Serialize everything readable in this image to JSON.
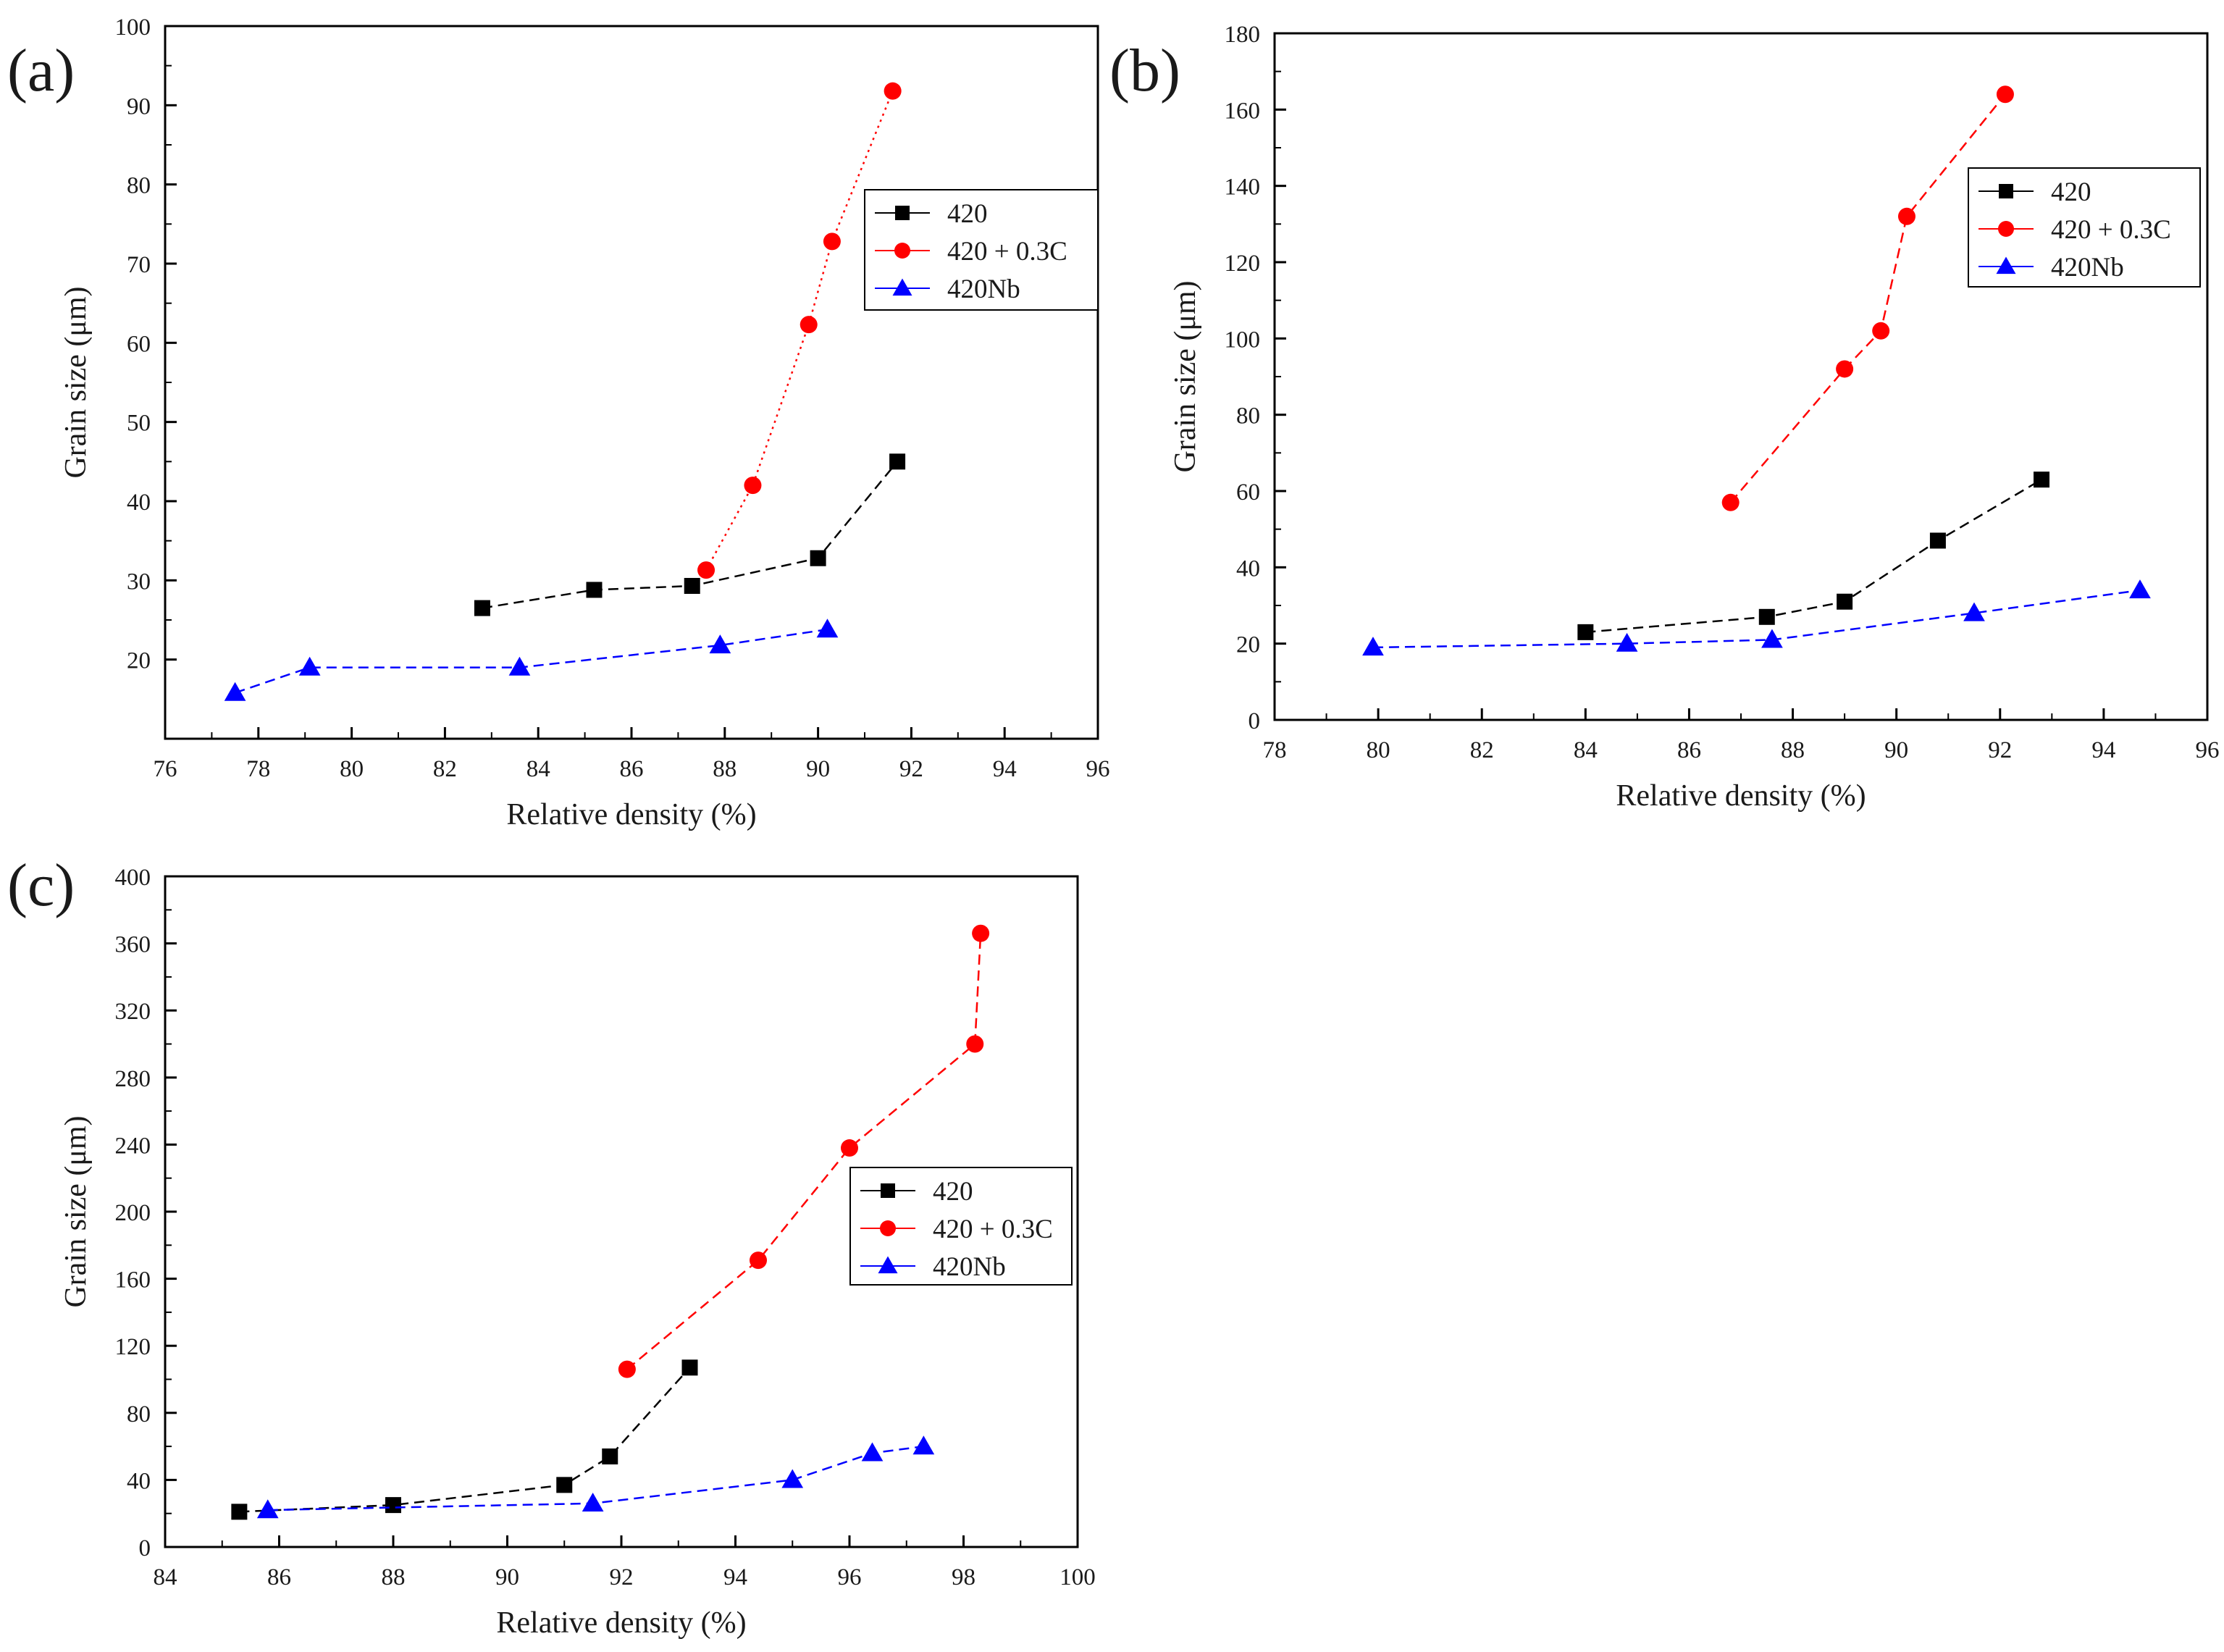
{
  "figure": {
    "panels": [
      "a",
      "b",
      "c"
    ]
  },
  "chart_data": [
    {
      "panel_label": "(a)",
      "type": "line",
      "title": "",
      "xlabel": "Relative density (%)",
      "ylabel": "Grain size (μm)",
      "xlim": [
        76,
        96
      ],
      "ylim": [
        10,
        100
      ],
      "xticks": [
        76,
        78,
        80,
        82,
        84,
        86,
        88,
        90,
        92,
        94,
        96
      ],
      "yticks": [
        20,
        30,
        40,
        50,
        60,
        70,
        80,
        90,
        100
      ],
      "grid": false,
      "legend_position": "top-right",
      "series": [
        {
          "name": "420",
          "marker": "square",
          "color": "#000000",
          "line": "dash",
          "x": [
            82.8,
            85.2,
            87.3,
            90.0,
            91.7
          ],
          "y": [
            26.5,
            28.8,
            29.3,
            32.8,
            45.0
          ]
        },
        {
          "name": "420 + 0.3C",
          "marker": "circle",
          "color": "#ff0000",
          "line": "dot",
          "x": [
            87.6,
            88.6,
            89.8,
            90.3,
            91.6
          ],
          "y": [
            31.3,
            42.0,
            62.3,
            72.8,
            91.8
          ]
        },
        {
          "name": "420Nb",
          "marker": "triangle",
          "color": "#0000ff",
          "line": "dash",
          "x": [
            77.5,
            79.1,
            83.6,
            87.9,
            90.2
          ],
          "y": [
            15.8,
            19.0,
            19.0,
            21.8,
            23.8
          ]
        }
      ]
    },
    {
      "panel_label": "(b)",
      "type": "line",
      "title": "",
      "xlabel": "Relative density (%)",
      "ylabel": "Grain size (μm)",
      "xlim": [
        78,
        96
      ],
      "ylim": [
        0,
        180
      ],
      "xticks": [
        78,
        80,
        82,
        84,
        86,
        88,
        90,
        92,
        94,
        96
      ],
      "yticks": [
        0,
        20,
        40,
        60,
        80,
        100,
        120,
        140,
        160,
        180
      ],
      "grid": false,
      "legend_position": "top-right",
      "series": [
        {
          "name": "420",
          "marker": "square",
          "color": "#000000",
          "line": "dash",
          "x": [
            84.0,
            87.5,
            89.0,
            90.8,
            92.8
          ],
          "y": [
            23.0,
            27.0,
            31.0,
            47.0,
            63.0
          ]
        },
        {
          "name": "420 + 0.3C",
          "marker": "circle",
          "color": "#ff0000",
          "line": "dash",
          "x": [
            86.8,
            89.0,
            89.7,
            90.2,
            92.1
          ],
          "y": [
            57.0,
            92.0,
            102.0,
            132.0,
            164.0
          ]
        },
        {
          "name": "420Nb",
          "marker": "triangle",
          "color": "#0000ff",
          "line": "dash",
          "x": [
            79.9,
            84.8,
            87.6,
            91.5,
            94.7
          ],
          "y": [
            19.0,
            20.0,
            21.0,
            28.0,
            34.0
          ]
        }
      ]
    },
    {
      "panel_label": "(c)",
      "type": "line",
      "title": "",
      "xlabel": "Relative density (%)",
      "ylabel": "Grain size (μm)",
      "xlim": [
        84,
        100
      ],
      "ylim": [
        0,
        400
      ],
      "xticks": [
        84,
        86,
        88,
        90,
        92,
        94,
        96,
        98,
        100
      ],
      "yticks": [
        0,
        40,
        80,
        120,
        160,
        200,
        240,
        280,
        320,
        360,
        400
      ],
      "grid": false,
      "legend_position": "center-right",
      "series": [
        {
          "name": "420",
          "marker": "square",
          "color": "#000000",
          "line": "dash",
          "x": [
            85.3,
            88.0,
            91.0,
            91.8,
            93.2
          ],
          "y": [
            21.0,
            25.0,
            37.0,
            54.0,
            107.0
          ]
        },
        {
          "name": "420 + 0.3C",
          "marker": "circle",
          "color": "#ff0000",
          "line": "dash",
          "x": [
            92.1,
            94.4,
            96.0,
            98.2,
            98.3
          ],
          "y": [
            106.0,
            171.0,
            238.0,
            300.0,
            366.0
          ]
        },
        {
          "name": "420Nb",
          "marker": "triangle",
          "color": "#0000ff",
          "line": "dash",
          "x": [
            85.8,
            91.5,
            95.0,
            96.4,
            97.3
          ],
          "y": [
            22.0,
            26.0,
            40.0,
            56.0,
            60.0
          ]
        }
      ]
    }
  ]
}
